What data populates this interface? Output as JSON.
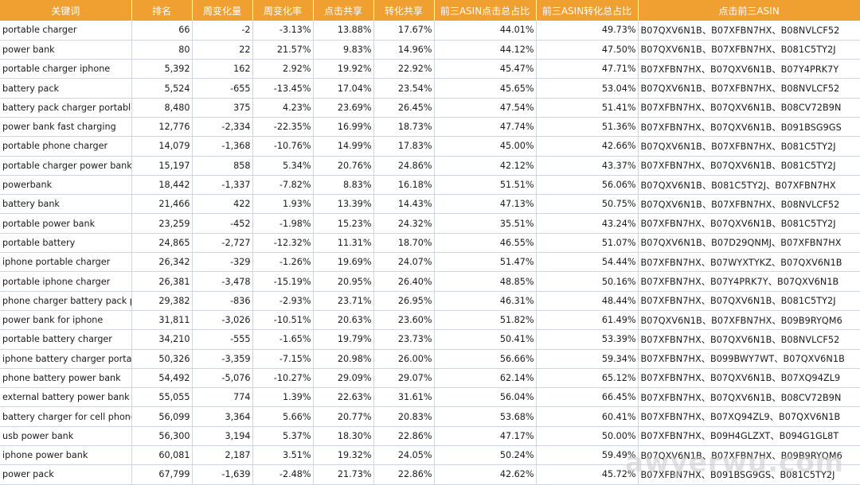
{
  "headers": [
    "关键词",
    "排名",
    "周变化量",
    "周变化率",
    "点击共享",
    "转化共享",
    "前三ASIN点击总占比",
    "前三ASIN转化总占比",
    "点击前三ASIN"
  ],
  "rows": [
    [
      "portable charger",
      "66",
      "-2",
      "-3.13%",
      "13.88%",
      "17.67%",
      "44.01%",
      "49.73%",
      "B07QXV6N1B、B07XFBN7HX、B08NVLCF52"
    ],
    [
      "power bank",
      "80",
      "22",
      "21.57%",
      "9.83%",
      "14.96%",
      "44.12%",
      "47.50%",
      "B07QXV6N1B、B07XFBN7HX、B081C5TY2J"
    ],
    [
      "portable charger iphone",
      "5,392",
      "162",
      "2.92%",
      "19.92%",
      "22.92%",
      "45.47%",
      "47.71%",
      "B07XFBN7HX、B07QXV6N1B、B07Y4PRK7Y"
    ],
    [
      "battery pack",
      "5,524",
      "-655",
      "-13.45%",
      "17.04%",
      "23.54%",
      "45.65%",
      "53.04%",
      "B07QXV6N1B、B07XFBN7HX、B08NVLCF52"
    ],
    [
      "battery pack charger portable",
      "8,480",
      "375",
      "4.23%",
      "23.69%",
      "26.45%",
      "47.54%",
      "51.41%",
      "B07XFBN7HX、B07QXV6N1B、B08CV72B9N"
    ],
    [
      "power bank fast charging",
      "12,776",
      "-2,334",
      "-22.35%",
      "16.99%",
      "18.73%",
      "47.74%",
      "51.36%",
      "B07XFBN7HX、B07QXV6N1B、B091BSG9GS"
    ],
    [
      "portable phone charger",
      "14,079",
      "-1,368",
      "-10.76%",
      "14.99%",
      "17.83%",
      "45.00%",
      "42.66%",
      "B07QXV6N1B、B07XFBN7HX、B081C5TY2J"
    ],
    [
      "portable charger power bank",
      "15,197",
      "858",
      "5.34%",
      "20.76%",
      "24.86%",
      "42.12%",
      "43.37%",
      "B07XFBN7HX、B07QXV6N1B、B081C5TY2J"
    ],
    [
      "powerbank",
      "18,442",
      "-1,337",
      "-7.82%",
      "8.83%",
      "16.18%",
      "51.51%",
      "56.06%",
      "B07QXV6N1B、B081C5TY2J、B07XFBN7HX"
    ],
    [
      "battery bank",
      "21,466",
      "422",
      "1.93%",
      "13.39%",
      "14.43%",
      "47.13%",
      "50.75%",
      "B07QXV6N1B、B07XFBN7HX、B08NVLCF52"
    ],
    [
      "portable power bank",
      "23,259",
      "-452",
      "-1.98%",
      "15.23%",
      "24.32%",
      "35.51%",
      "43.24%",
      "B07XFBN7HX、B07QXV6N1B、B081C5TY2J"
    ],
    [
      "portable battery",
      "24,865",
      "-2,727",
      "-12.32%",
      "11.31%",
      "18.70%",
      "46.55%",
      "51.07%",
      "B07QXV6N1B、B07D29QNMJ、B07XFBN7HX"
    ],
    [
      "iphone portable charger",
      "26,342",
      "-329",
      "-1.26%",
      "19.69%",
      "24.07%",
      "51.47%",
      "54.44%",
      "B07XFBN7HX、B07WYXTYKZ、B07QXV6N1B"
    ],
    [
      "portable iphone charger",
      "26,381",
      "-3,478",
      "-15.19%",
      "20.95%",
      "26.40%",
      "48.85%",
      "50.16%",
      "B07XFBN7HX、B07Y4PRK7Y、B07QXV6N1B"
    ],
    [
      "phone charger battery pack po",
      "29,382",
      "-836",
      "-2.93%",
      "23.71%",
      "26.95%",
      "46.31%",
      "48.44%",
      "B07XFBN7HX、B07QXV6N1B、B081C5TY2J"
    ],
    [
      "power bank for iphone",
      "31,811",
      "-3,026",
      "-10.51%",
      "20.63%",
      "23.60%",
      "51.82%",
      "61.49%",
      "B07QXV6N1B、B07XFBN7HX、B09B9RYQM6"
    ],
    [
      "portable battery charger",
      "34,210",
      "-555",
      "-1.65%",
      "19.79%",
      "23.73%",
      "50.41%",
      "53.39%",
      "B07XFBN7HX、B07QXV6N1B、B08NVLCF52"
    ],
    [
      "iphone battery charger portable",
      "50,326",
      "-3,359",
      "-7.15%",
      "20.98%",
      "26.00%",
      "56.66%",
      "59.34%",
      "B07XFBN7HX、B099BWY7WT、B07QXV6N1B"
    ],
    [
      "phone battery power bank",
      "54,492",
      "-5,076",
      "-10.27%",
      "29.09%",
      "29.07%",
      "62.14%",
      "65.12%",
      "B07XFBN7HX、B07QXV6N1B、B07XQ94ZL9"
    ],
    [
      "external battery power bank",
      "55,055",
      "774",
      "1.39%",
      "22.63%",
      "31.61%",
      "56.04%",
      "66.45%",
      "B07XFBN7HX、B07QXV6N1B、B08CV72B9N"
    ],
    [
      "battery charger for cell phones",
      "56,099",
      "3,364",
      "5.66%",
      "20.77%",
      "20.83%",
      "53.68%",
      "60.41%",
      "B07XFBN7HX、B07XQ94ZL9、B07QXV6N1B"
    ],
    [
      "usb power bank",
      "56,300",
      "3,194",
      "5.37%",
      "18.30%",
      "22.86%",
      "47.17%",
      "50.00%",
      "B07XFBN7HX、B09H4GLZXT、B094G1GL8T"
    ],
    [
      "iphone power bank",
      "60,081",
      "2,187",
      "3.51%",
      "19.32%",
      "24.05%",
      "50.24%",
      "59.49%",
      "B07QXV6N1B、B07XFBN7HX、B09B9RYQM6"
    ],
    [
      "power pack",
      "67,799",
      "-1,639",
      "-2.48%",
      "21.73%",
      "22.86%",
      "42.62%",
      "45.72%",
      "B07XFBN7HX、B091BSG9GS、B081C5TY2J"
    ]
  ],
  "watermark": "awyerwu.com",
  "colors": {
    "header_bg": "#f0a030",
    "grid": "#cfd3ea"
  }
}
